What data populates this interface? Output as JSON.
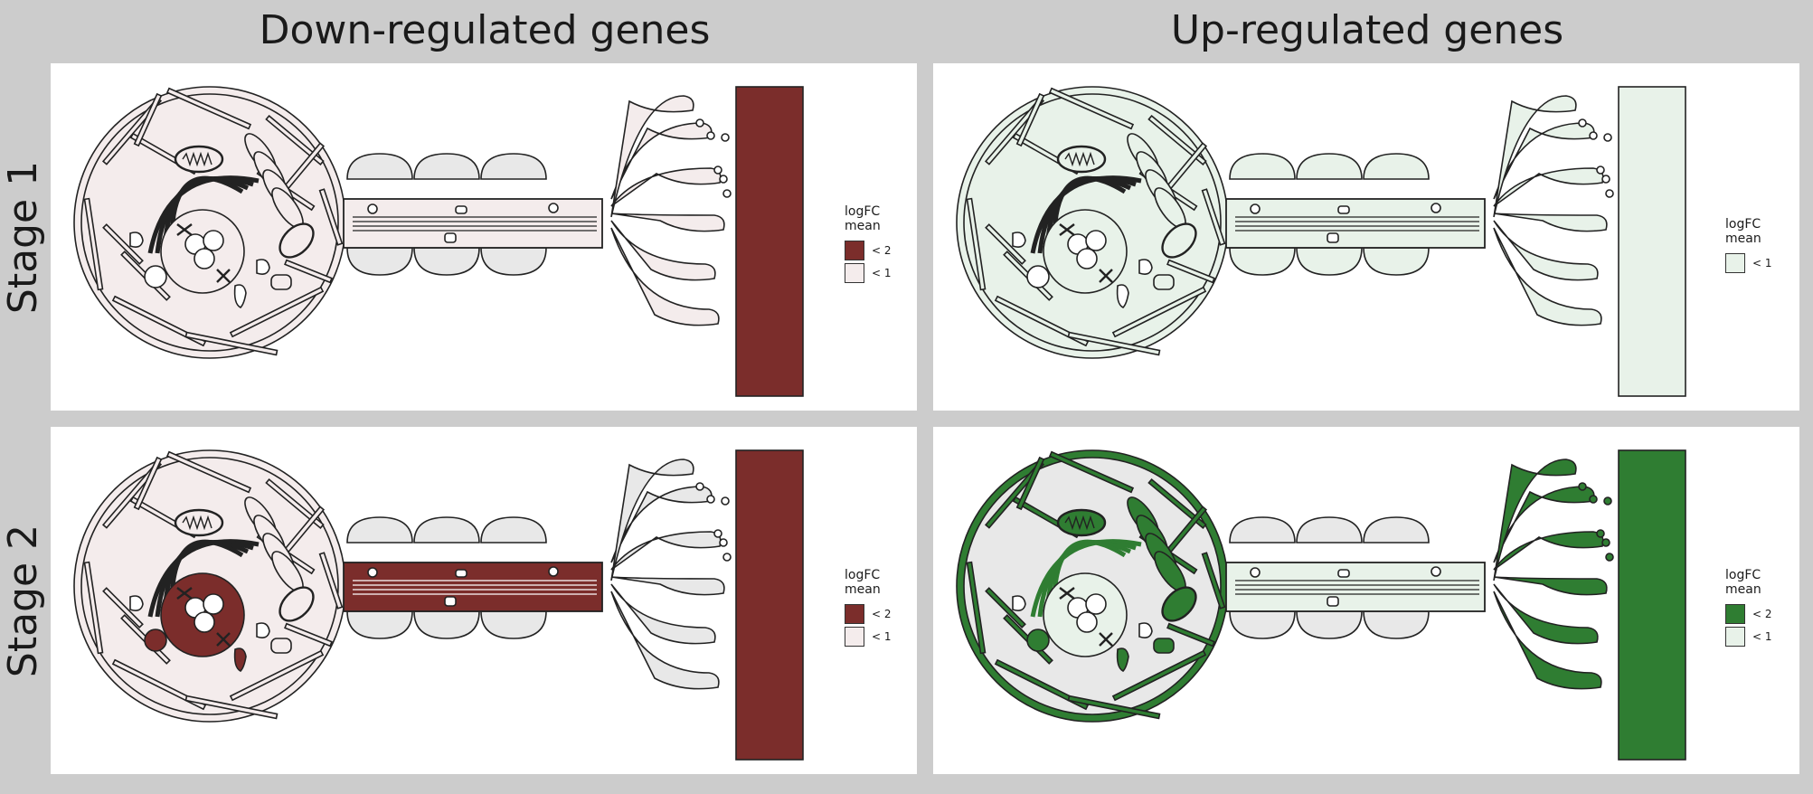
{
  "columns": [
    "Down-regulated genes",
    "Up-regulated genes"
  ],
  "rows": [
    "Stage 1",
    "Stage 2"
  ],
  "legend_title": "logFC mean",
  "colors": {
    "down_strong": "#7b2d2b",
    "down_light": "#f4ecec",
    "up_strong": "#2f7d32",
    "up_light": "#e8f2e9",
    "neutral": "#e8e8e8",
    "outline": "#222222"
  },
  "panels": [
    {
      "id": "down-stage1",
      "legend": [
        "< 2",
        "< 1"
      ]
    },
    {
      "id": "up-stage1",
      "legend": [
        "< 1"
      ]
    },
    {
      "id": "down-stage2",
      "legend": [
        "< 2",
        "< 1"
      ]
    },
    {
      "id": "up-stage2",
      "legend": [
        "< 2",
        "< 1"
      ]
    }
  ]
}
